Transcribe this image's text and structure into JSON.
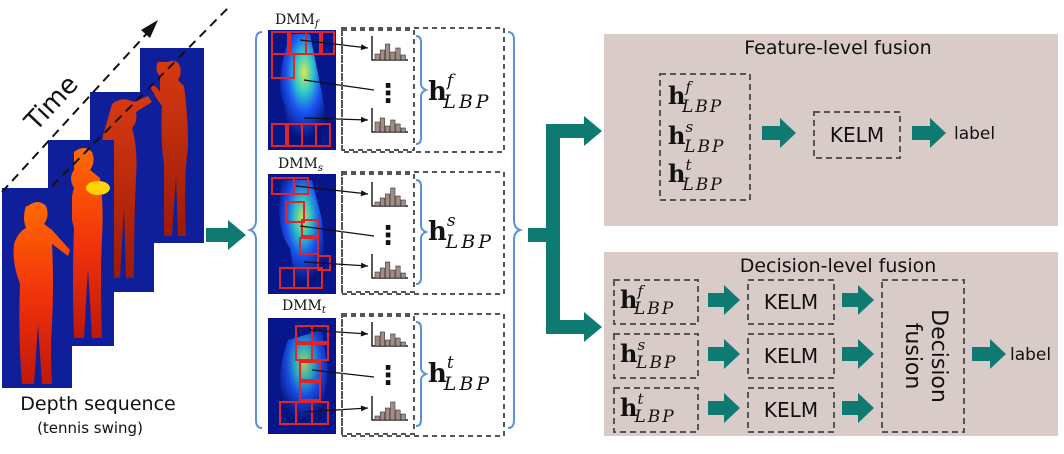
{
  "colors": {
    "arrow": "#0f7a72",
    "panel": "#d9cbc8",
    "dash": "#555555",
    "bracket": "#5b8fd6",
    "histogram_bar": "#a58b86",
    "grid_box": "#e0242a"
  },
  "left": {
    "time_label": "Time",
    "caption": "Depth sequence",
    "subcaption": "(tennis swing)"
  },
  "dmm": {
    "front": {
      "label": "DMM",
      "sub": "f"
    },
    "side": {
      "label": "DMM",
      "sub": "s"
    },
    "top": {
      "label": "DMM",
      "sub": "t"
    },
    "vertical_dots": "⋮"
  },
  "features": {
    "h": "h",
    "lbp": "LBP",
    "sup_f": "f",
    "sup_s": "s",
    "sup_t": "t"
  },
  "feature_fusion": {
    "title": "Feature-level fusion",
    "classifier": "KELM",
    "output": "label"
  },
  "decision_fusion": {
    "title": "Decision-level fusion",
    "classifiers": [
      "KELM",
      "KELM",
      "KELM"
    ],
    "fusion_line1": "Decision",
    "fusion_line2": "fusion",
    "output": "label"
  }
}
